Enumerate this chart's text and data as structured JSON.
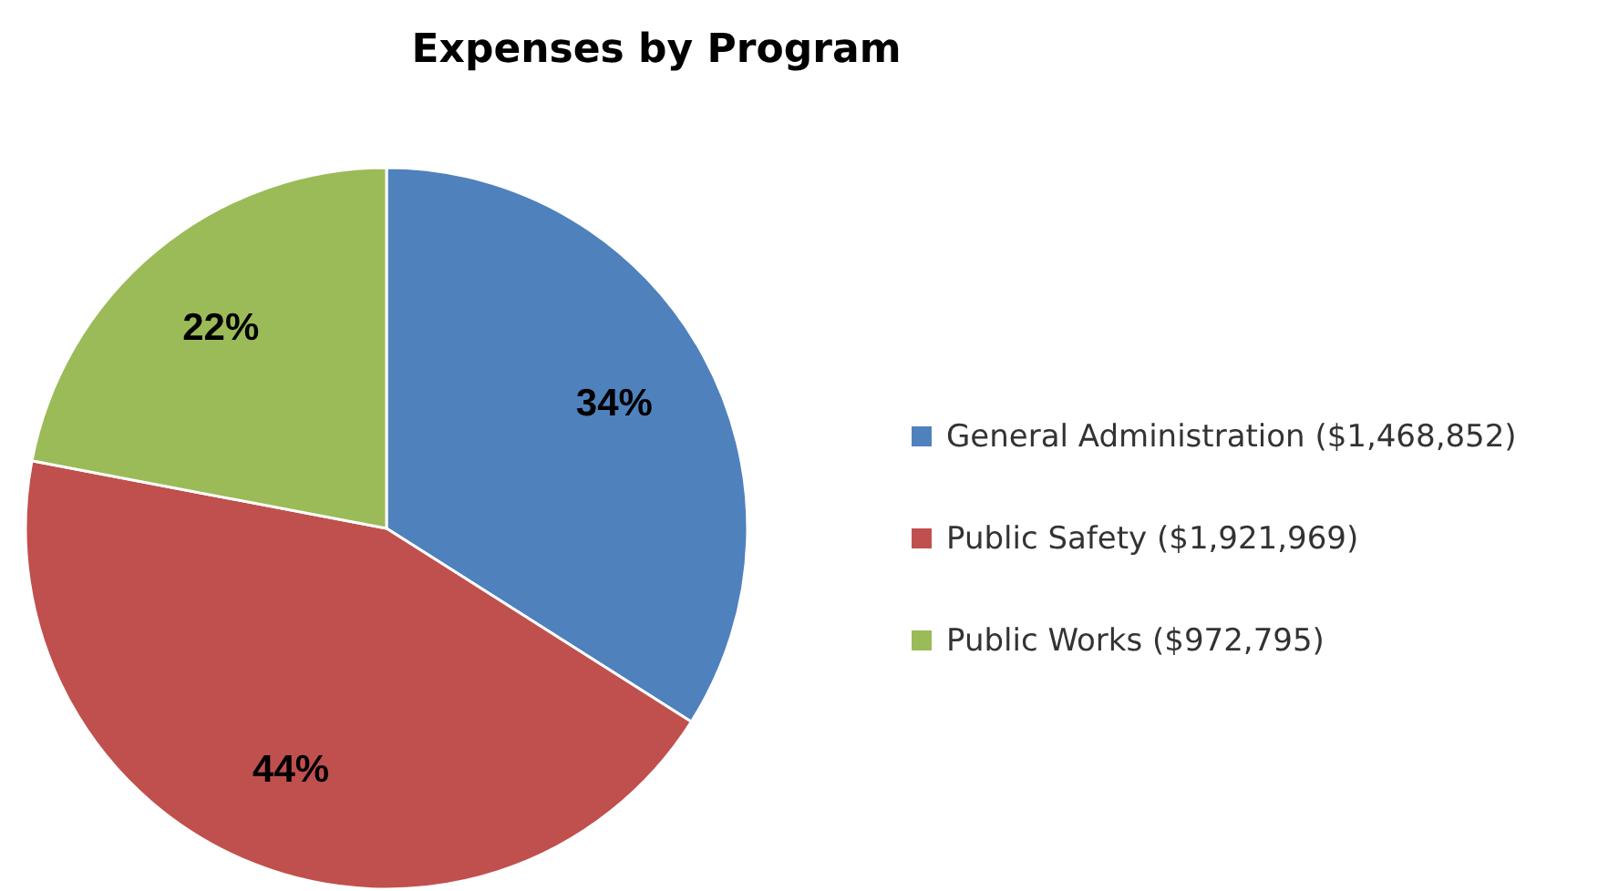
{
  "chart_data": {
    "type": "pie",
    "title": "Expenses by Program",
    "categories": [
      "General Administration ($1,468,852)",
      "Public Safety ($1,921,969)",
      "Public Works ($972,795)"
    ],
    "values": [
      34,
      44,
      22
    ],
    "colors": [
      "#4f81bd",
      "#c0504d",
      "#9bbb59"
    ],
    "value_labels": [
      "34%",
      "44%",
      "22%"
    ],
    "legend": "right"
  }
}
